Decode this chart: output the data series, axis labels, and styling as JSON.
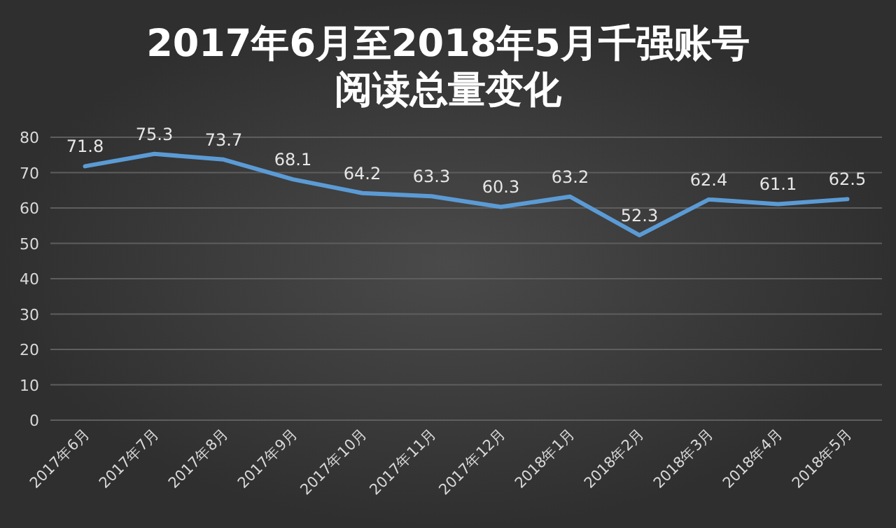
{
  "chart_data": {
    "type": "line",
    "title": "2017年6月至2018年5月千强账号阅读总量变化",
    "categories": [
      "2017年6月",
      "2017年7月",
      "2017年8月",
      "2017年9月",
      "2017年10月",
      "2017年11月",
      "2017年12月",
      "2018年1月",
      "2018年2月",
      "2018年3月",
      "2018年4月",
      "2018年5月"
    ],
    "series": [
      {
        "color": "#5b9bd5",
        "values": [
          71.8,
          75.3,
          73.7,
          68.1,
          64.2,
          63.3,
          60.3,
          63.2,
          52.3,
          62.4,
          61.1,
          62.5
        ]
      }
    ],
    "ylim": [
      0,
      80
    ],
    "yticks": [
      0,
      10,
      20,
      30,
      40,
      50,
      60,
      70,
      80
    ],
    "grid": "y",
    "data_labels": true,
    "marker": "none",
    "line_style": "solid"
  }
}
